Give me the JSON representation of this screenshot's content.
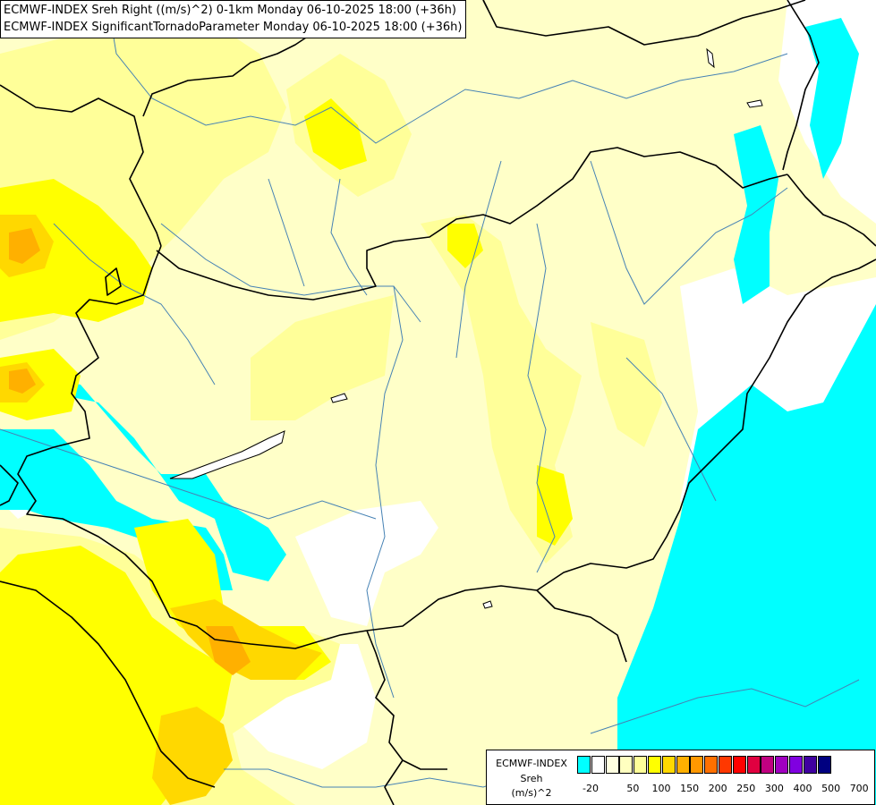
{
  "title": {
    "line1": "ECMWF-INDEX Sreh Right ((m/s)^2) 0-1km Monday 06-10-2025 18:00 (+36h)",
    "line2": "ECMWF-INDEX SignificantTornadoParameter Monday 06-10-2025 18:00 (+36h)"
  },
  "legend": {
    "label_line1": "ECMWF-INDEX",
    "label_line2": "Sreh",
    "label_line3": "(m/s)^2",
    "colors": [
      "#00ffff",
      "#ffffff",
      "#ffffe0",
      "#ffffc0",
      "#ffff9a",
      "#ffff00",
      "#ffd800",
      "#ffb000",
      "#ff9800",
      "#ff7000",
      "#ff3800",
      "#ff0000",
      "#e00040",
      "#c00080",
      "#a000c0",
      "#8000e0",
      "#4000a0",
      "#000080"
    ],
    "tick_labels": [
      "-20",
      "50",
      "100",
      "150",
      "200",
      "250",
      "300",
      "400",
      "500",
      "700"
    ]
  },
  "colors": {
    "cyan": "#00ffff",
    "pale_yellow": "#ffffc8",
    "light_yellow": "#ffff99",
    "yellow": "#ffff00",
    "gold": "#ffd800",
    "orange": "#ffb000",
    "river": "#4682b4",
    "border": "#000000"
  }
}
